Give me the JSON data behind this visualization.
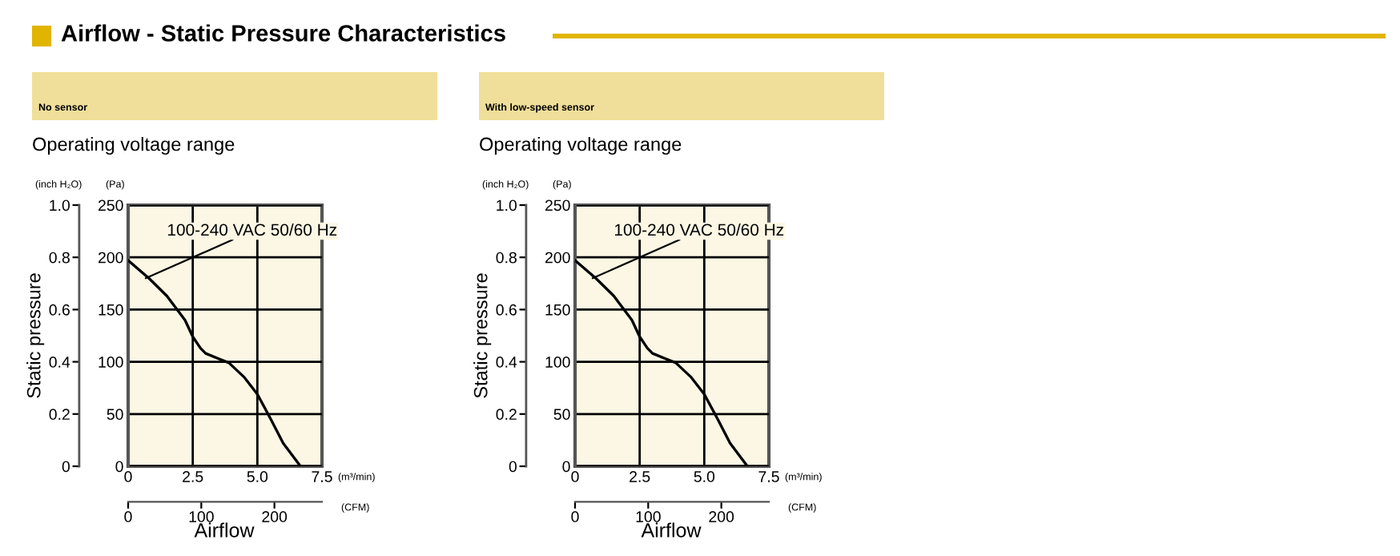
{
  "chart_data": [
    {
      "type": "line",
      "title": "Operating voltage range",
      "subtitle": "No sensor",
      "xlabel": "Airflow",
      "ylabel": "Static pressure",
      "y2label": "(Pa)",
      "x2label": "(CFM)",
      "annotations": [
        "Airflow - Static Pressure Characteristics",
        "(inch H₂O)",
        "(m³/min)",
        "100-240 VAC 50/60 Hz"
      ],
      "x": [
        0,
        0.8,
        1.5,
        2.2,
        2.5,
        2.8,
        3.0,
        3.5,
        3.9,
        4.5,
        5.0,
        5.5,
        6.0,
        6.67
      ],
      "series": [
        {
          "color": "#000000",
          "axis": "y2",
          "values": [
            197,
            180,
            163,
            140,
            124,
            113,
            108,
            103,
            99,
            85,
            69,
            46,
            22,
            0
          ]
        }
      ],
      "xlim": [
        0,
        7.5
      ],
      "xticks": [
        0,
        2.5,
        {
          "value": 5,
          "label": "5.0"
        },
        7.5
      ],
      "y2lim": [
        0,
        250
      ],
      "y2ticks": [
        0,
        50,
        100,
        150,
        200,
        250
      ],
      "ylim": [
        0,
        1.0
      ],
      "yticks": [
        0,
        0.2,
        0.4,
        0.6,
        0.8,
        {
          "value": 1,
          "label": "1.0"
        }
      ],
      "x2lim": [
        0,
        265
      ],
      "x2ticks": [
        0,
        100,
        200
      ],
      "grid": true,
      "legend": false,
      "marker": "none",
      "line_style": "solid"
    },
    {
      "type": "line",
      "title": "Operating voltage range",
      "subtitle": "With low-speed sensor",
      "xlabel": "Airflow",
      "ylabel": "Static pressure",
      "y2label": "(Pa)",
      "x2label": "(CFM)",
      "annotations": [
        "(inch H₂O)",
        "(m³/min)",
        "100-240 VAC 50/60 Hz"
      ],
      "x": [
        0,
        0.8,
        1.5,
        2.2,
        2.5,
        2.8,
        3.0,
        3.5,
        3.9,
        4.5,
        5.0,
        5.5,
        6.0,
        6.67
      ],
      "series": [
        {
          "color": "#000000",
          "axis": "y2",
          "values": [
            197,
            180,
            163,
            140,
            124,
            113,
            108,
            103,
            99,
            85,
            69,
            46,
            22,
            0
          ]
        }
      ],
      "xlim": [
        0,
        7.5
      ],
      "xticks": [
        0,
        2.5,
        {
          "value": 5,
          "label": "5.0"
        },
        7.5
      ],
      "y2lim": [
        0,
        250
      ],
      "y2ticks": [
        0,
        50,
        100,
        150,
        200,
        250
      ],
      "ylim": [
        0,
        1.0
      ],
      "yticks": [
        0,
        0.2,
        0.4,
        0.6,
        0.8,
        {
          "value": 1,
          "label": "1.0"
        }
      ],
      "x2lim": [
        0,
        265
      ],
      "x2ticks": [
        0,
        100,
        200
      ],
      "grid": true,
      "legend": false,
      "marker": "none",
      "line_style": "solid"
    }
  ]
}
